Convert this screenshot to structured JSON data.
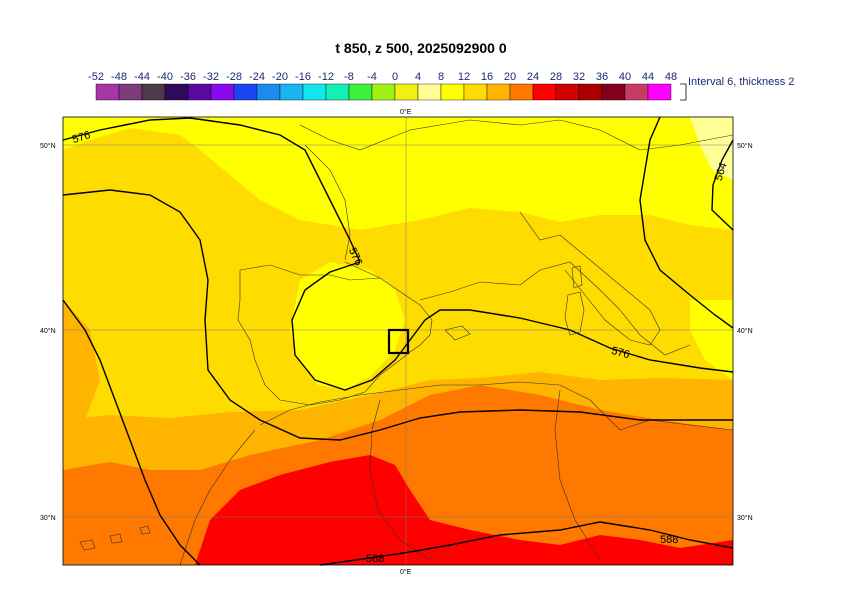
{
  "title": "t 850, z 500, 2025092900 0",
  "legend": {
    "ticks": [
      "-52",
      "-48",
      "-44",
      "-40",
      "-36",
      "-32",
      "-28",
      "-24",
      "-20",
      "-16",
      "-12",
      "-8",
      "-4",
      "0",
      "4",
      "8",
      "12",
      "16",
      "20",
      "24",
      "28",
      "32",
      "36",
      "40",
      "44",
      "48"
    ],
    "colors": [
      "#d236d2",
      "#a736a7",
      "#7d3a7d",
      "#4a3a4a",
      "#2e0a5a",
      "#5a0aa0",
      "#8a0af0",
      "#1a46f0",
      "#1a8cf0",
      "#1ab4f0",
      "#14e6f0",
      "#14f0b4",
      "#3cf03c",
      "#a0f014",
      "#f0f014",
      "#ffff96",
      "#ffff00",
      "#ffdc00",
      "#ffb400",
      "#ff7800",
      "#ff0000",
      "#d20000",
      "#aa0000",
      "#82001e",
      "#c83c64",
      "#ff00ff",
      "#ff8cff",
      "#ffc8ff"
    ],
    "interval_text": "Interval 6, thickness 2"
  },
  "map": {
    "lat_labels": [
      "50°N",
      "40°N",
      "30°N"
    ],
    "lon_label_top": "0°E",
    "lon_label_bottom": "0°E",
    "contours": [
      "576",
      "576",
      "576",
      "564",
      "588",
      "588"
    ],
    "colors": {
      "t8_12": "#ffdc00",
      "t4_8": "#ffff00",
      "t0_4": "#ffff96",
      "t12_16": "#ffb400",
      "t16_20": "#ff7800",
      "t20_24": "#ff0000"
    }
  }
}
